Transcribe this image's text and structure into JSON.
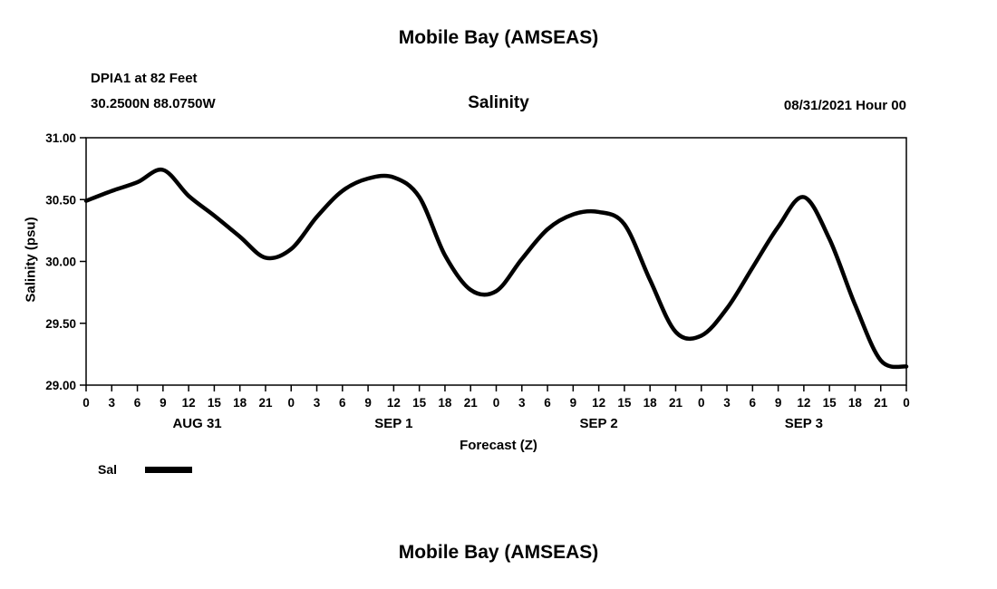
{
  "page": {
    "title_top": "Mobile Bay (AMSEAS)",
    "title_bottom": "Mobile Bay (AMSEAS)"
  },
  "header": {
    "station": "DPIA1 at 82 Feet",
    "coords": "30.2500N  88.0750W",
    "plot_title": "Salinity",
    "run_time": "08/31/2021 Hour 00"
  },
  "legend": {
    "label": "Sal",
    "line_color": "#000000"
  },
  "chart_data": {
    "type": "line",
    "title": "Salinity",
    "xlabel": "Forecast (Z)",
    "ylabel": "Salinity (psu)",
    "ylim": [
      29.0,
      31.0
    ],
    "yticks": [
      29.0,
      29.5,
      30.0,
      30.5,
      31.0
    ],
    "x_range_hours": [
      0,
      96
    ],
    "xtick_hours": [
      0,
      3,
      6,
      9,
      12,
      15,
      18,
      21,
      24,
      27,
      30,
      33,
      36,
      39,
      42,
      45,
      48,
      51,
      54,
      57,
      60,
      63,
      66,
      69,
      72,
      75,
      78,
      81,
      84,
      87,
      90,
      93,
      96
    ],
    "xtick_labels": [
      "0",
      "3",
      "6",
      "9",
      "12",
      "15",
      "18",
      "21",
      "0",
      "3",
      "6",
      "9",
      "12",
      "15",
      "18",
      "21",
      "0",
      "3",
      "6",
      "9",
      "12",
      "15",
      "18",
      "21",
      "0",
      "3",
      "6",
      "9",
      "12",
      "15",
      "18",
      "21",
      "0"
    ],
    "day_labels": [
      {
        "label": "AUG 31",
        "hour": 13
      },
      {
        "label": "SEP 1",
        "hour": 36
      },
      {
        "label": "SEP 2",
        "hour": 60
      },
      {
        "label": "SEP 3",
        "hour": 84
      }
    ],
    "grid": false,
    "legend_position": "below-left",
    "series": [
      {
        "name": "Sal",
        "color": "#000000",
        "x": [
          0,
          3,
          6,
          9,
          12,
          15,
          18,
          21,
          24,
          27,
          30,
          33,
          36,
          39,
          42,
          45,
          48,
          51,
          54,
          57,
          60,
          63,
          66,
          69,
          72,
          75,
          78,
          81,
          84,
          87,
          90,
          93,
          96
        ],
        "values": [
          30.49,
          30.57,
          30.64,
          30.74,
          30.53,
          30.37,
          30.2,
          30.03,
          30.1,
          30.36,
          30.57,
          30.67,
          30.68,
          30.52,
          30.05,
          29.77,
          29.76,
          30.02,
          30.26,
          30.38,
          30.4,
          30.3,
          29.85,
          29.43,
          29.4,
          29.62,
          29.95,
          30.28,
          30.52,
          30.18,
          29.65,
          29.2,
          29.15
        ]
      }
    ]
  }
}
